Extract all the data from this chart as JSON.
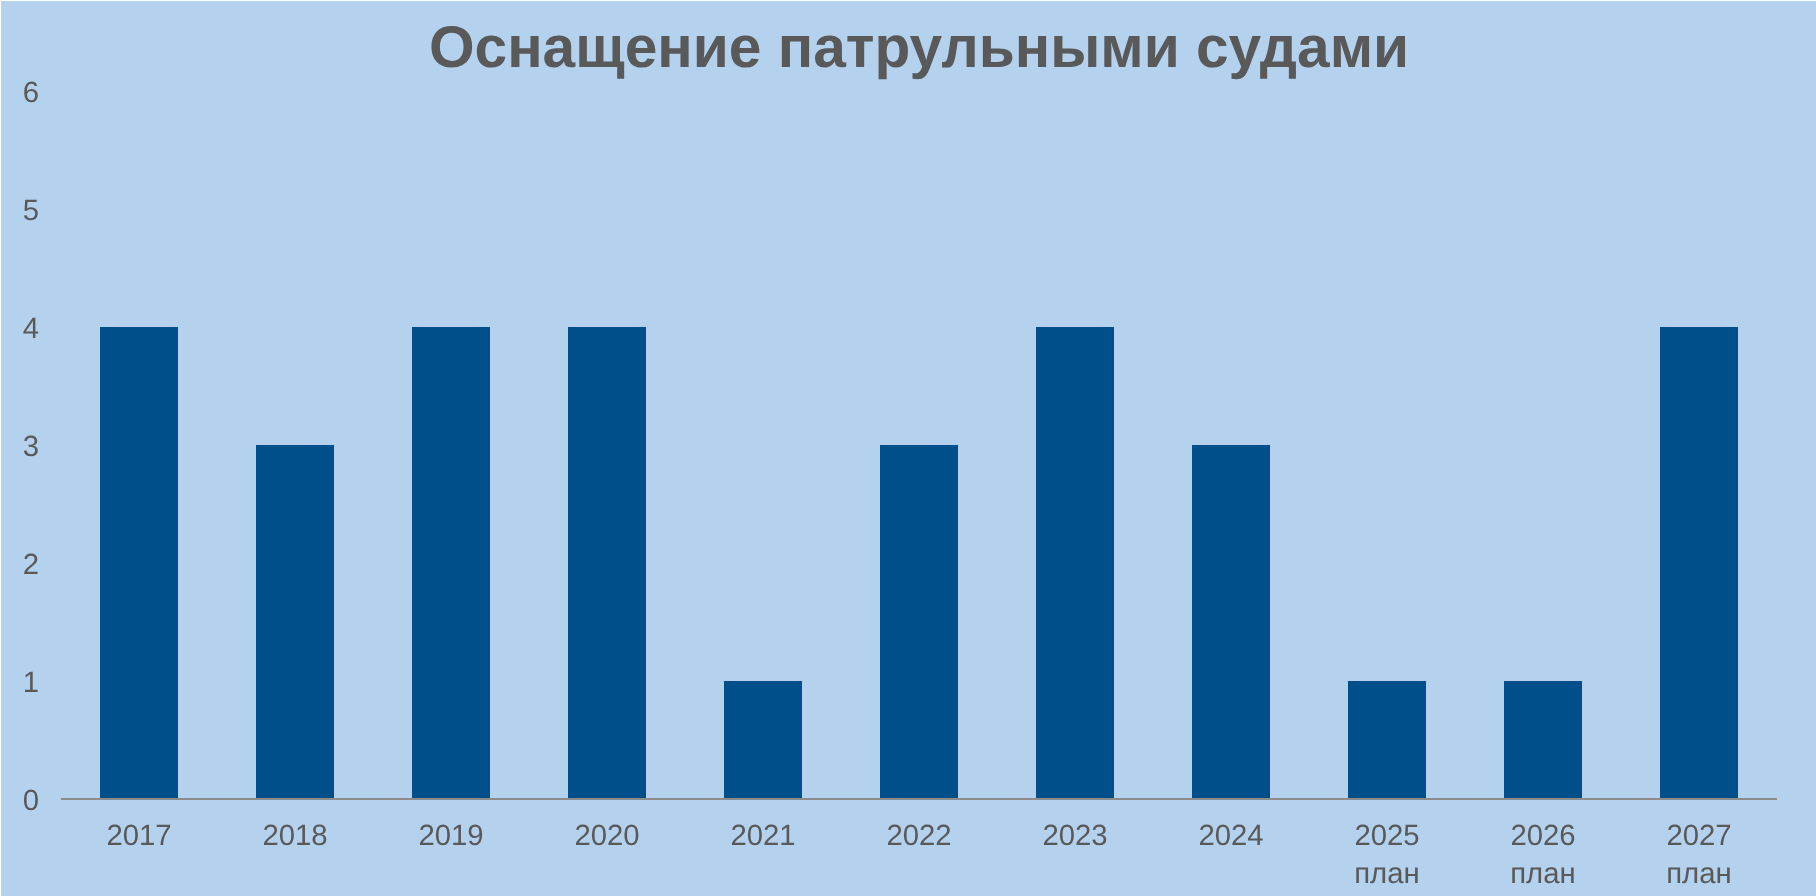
{
  "chart_data": {
    "type": "bar",
    "title": "Оснащение патрульными судами",
    "categories": [
      "2017",
      "2018",
      "2019",
      "2020",
      "2021",
      "2022",
      "2023",
      "2024",
      "2025\nплан",
      "2026\nплан",
      "2027\nплан"
    ],
    "values": [
      4,
      3,
      4,
      4,
      1,
      3,
      4,
      3,
      1,
      1,
      4
    ],
    "color": "#004f8b",
    "ylim": [
      0,
      6
    ],
    "yticks": [
      0,
      1,
      2,
      3,
      4,
      5,
      6
    ],
    "grid": false
  }
}
